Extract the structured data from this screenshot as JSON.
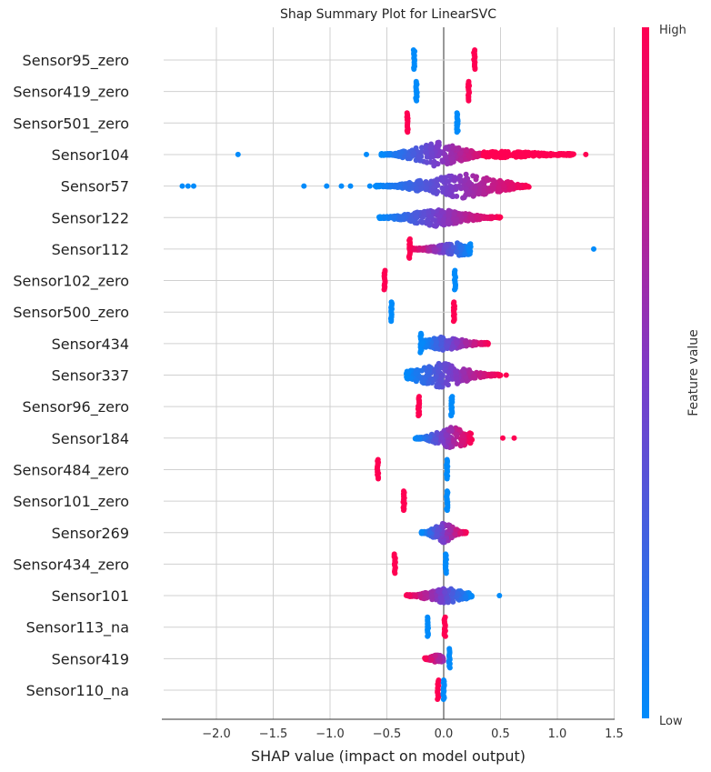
{
  "chart_data": {
    "type": "scatter",
    "subtype": "shap-beeswarm",
    "title": "Shap Summary Plot for LinearSVC",
    "xlabel": "SHAP value (impact on model output)",
    "xlim": [
      -2.45,
      1.5
    ],
    "xticks": [
      "−2.0",
      "−1.5",
      "−1.0",
      "−0.5",
      "0.0",
      "0.5",
      "1.0",
      "1.5"
    ],
    "xtick_values": [
      -2.0,
      -1.5,
      -1.0,
      -0.5,
      0.0,
      0.5,
      1.0,
      1.5
    ],
    "grid": true,
    "colorbar": {
      "label": "Feature value",
      "high": "High",
      "low": "Low",
      "high_color": "#ff0052",
      "low_color": "#008bfb"
    },
    "features": [
      {
        "name": "Sensor95_zero",
        "bars": [
          {
            "x": -0.26,
            "v": 0
          },
          {
            "x": 0.27,
            "v": 1
          }
        ],
        "clusters": [],
        "outliers": []
      },
      {
        "name": "Sensor419_zero",
        "bars": [
          {
            "x": -0.24,
            "v": 0
          },
          {
            "x": 0.22,
            "v": 1
          }
        ],
        "clusters": [],
        "outliers": []
      },
      {
        "name": "Sensor501_zero",
        "bars": [
          {
            "x": -0.32,
            "v": 1
          },
          {
            "x": 0.12,
            "v": 0
          }
        ],
        "clusters": [],
        "outliers": []
      },
      {
        "name": "Sensor104",
        "bars": [],
        "clusters": [
          {
            "x0": -0.55,
            "x1": 0.45,
            "v0": 0,
            "v1": 1,
            "peak": -0.05,
            "h": 1
          },
          {
            "x0": 0.35,
            "x1": 1.15,
            "v0": 1,
            "v1": 1,
            "peak": 0.5,
            "h": 0.2
          }
        ],
        "outliers": [
          {
            "x": -1.81,
            "v": 0
          },
          {
            "x": -0.68,
            "v": 0
          },
          {
            "x": 1.25,
            "v": 1
          }
        ]
      },
      {
        "name": "Sensor57",
        "bars": [],
        "clusters": [
          {
            "x0": -0.6,
            "x1": 0.75,
            "v0": 0,
            "v1": 1,
            "peak": 0.15,
            "h": 1
          }
        ],
        "outliers": [
          {
            "x": -2.3,
            "v": 0
          },
          {
            "x": -2.25,
            "v": 0
          },
          {
            "x": -2.2,
            "v": 0
          },
          {
            "x": -1.23,
            "v": 0
          },
          {
            "x": -1.03,
            "v": 0
          },
          {
            "x": -0.9,
            "v": 0
          },
          {
            "x": -0.82,
            "v": 0
          },
          {
            "x": -0.65,
            "v": 0
          }
        ]
      },
      {
        "name": "Sensor122",
        "bars": [],
        "clusters": [
          {
            "x0": -0.57,
            "x1": 0.5,
            "v0": 0,
            "v1": 1,
            "peak": -0.05,
            "h": 0.7
          }
        ],
        "outliers": []
      },
      {
        "name": "Sensor112",
        "bars": [
          {
            "x": -0.3,
            "v": 1
          }
        ],
        "clusters": [
          {
            "x0": -0.3,
            "x1": 0.24,
            "v0": 1,
            "v1": 0,
            "peak": 0.15,
            "h": 0.5
          }
        ],
        "outliers": [
          {
            "x": 1.32,
            "v": 0
          }
        ]
      },
      {
        "name": "Sensor102_zero",
        "bars": [
          {
            "x": -0.52,
            "v": 1
          },
          {
            "x": 0.1,
            "v": 0
          }
        ],
        "clusters": [],
        "outliers": []
      },
      {
        "name": "Sensor500_zero",
        "bars": [
          {
            "x": -0.46,
            "v": 0
          },
          {
            "x": 0.09,
            "v": 1
          }
        ],
        "clusters": [],
        "outliers": []
      },
      {
        "name": "Sensor434",
        "bars": [
          {
            "x": -0.2,
            "v": 0
          }
        ],
        "clusters": [
          {
            "x0": -0.2,
            "x1": 0.4,
            "v0": 0,
            "v1": 1,
            "peak": 0.0,
            "h": 0.5
          }
        ],
        "outliers": []
      },
      {
        "name": "Sensor337",
        "bars": [],
        "clusters": [
          {
            "x0": -0.33,
            "x1": 0.5,
            "v0": 0,
            "v1": 1,
            "peak": -0.02,
            "h": 1
          }
        ],
        "outliers": [
          {
            "x": 0.55,
            "v": 1
          }
        ]
      },
      {
        "name": "Sensor96_zero",
        "bars": [
          {
            "x": -0.22,
            "v": 1
          },
          {
            "x": 0.07,
            "v": 0
          }
        ],
        "clusters": [],
        "outliers": []
      },
      {
        "name": "Sensor184",
        "bars": [],
        "clusters": [
          {
            "x0": -0.25,
            "x1": 0.25,
            "v0": 0,
            "v1": 1,
            "peak": 0.08,
            "h": 0.9
          }
        ],
        "outliers": [
          {
            "x": 0.52,
            "v": 1
          },
          {
            "x": 0.62,
            "v": 1
          }
        ]
      },
      {
        "name": "Sensor484_zero",
        "bars": [
          {
            "x": -0.58,
            "v": 1
          },
          {
            "x": 0.03,
            "v": 0
          }
        ],
        "clusters": [],
        "outliers": []
      },
      {
        "name": "Sensor101_zero",
        "bars": [
          {
            "x": -0.35,
            "v": 1
          },
          {
            "x": 0.03,
            "v": 0
          }
        ],
        "clusters": [],
        "outliers": []
      },
      {
        "name": "Sensor269",
        "bars": [],
        "clusters": [
          {
            "x0": -0.2,
            "x1": 0.2,
            "v0": 0,
            "v1": 1,
            "peak": 0.0,
            "h": 0.8
          }
        ],
        "outliers": []
      },
      {
        "name": "Sensor434_zero",
        "bars": [
          {
            "x": -0.43,
            "v": 1
          },
          {
            "x": 0.02,
            "v": 0
          }
        ],
        "clusters": [],
        "outliers": []
      },
      {
        "name": "Sensor101",
        "bars": [],
        "clusters": [
          {
            "x0": -0.33,
            "x1": 0.25,
            "v0": 1,
            "v1": 0,
            "peak": 0.02,
            "h": 0.6
          }
        ],
        "outliers": [
          {
            "x": 0.49,
            "v": 0
          }
        ]
      },
      {
        "name": "Sensor113_na",
        "bars": [
          {
            "x": -0.14,
            "v": 0
          },
          {
            "x": 0.01,
            "v": 1
          }
        ],
        "clusters": [],
        "outliers": []
      },
      {
        "name": "Sensor419",
        "bars": [
          {
            "x": 0.05,
            "v": 0
          }
        ],
        "clusters": [
          {
            "x0": -0.17,
            "x1": 0.0,
            "v0": 1,
            "v1": 0.6,
            "peak": -0.05,
            "h": 0.3
          }
        ],
        "outliers": []
      },
      {
        "name": "Sensor110_na",
        "bars": [
          {
            "x": -0.05,
            "v": 1
          },
          {
            "x": 0.0,
            "v": 0
          }
        ],
        "clusters": [],
        "outliers": []
      }
    ]
  }
}
